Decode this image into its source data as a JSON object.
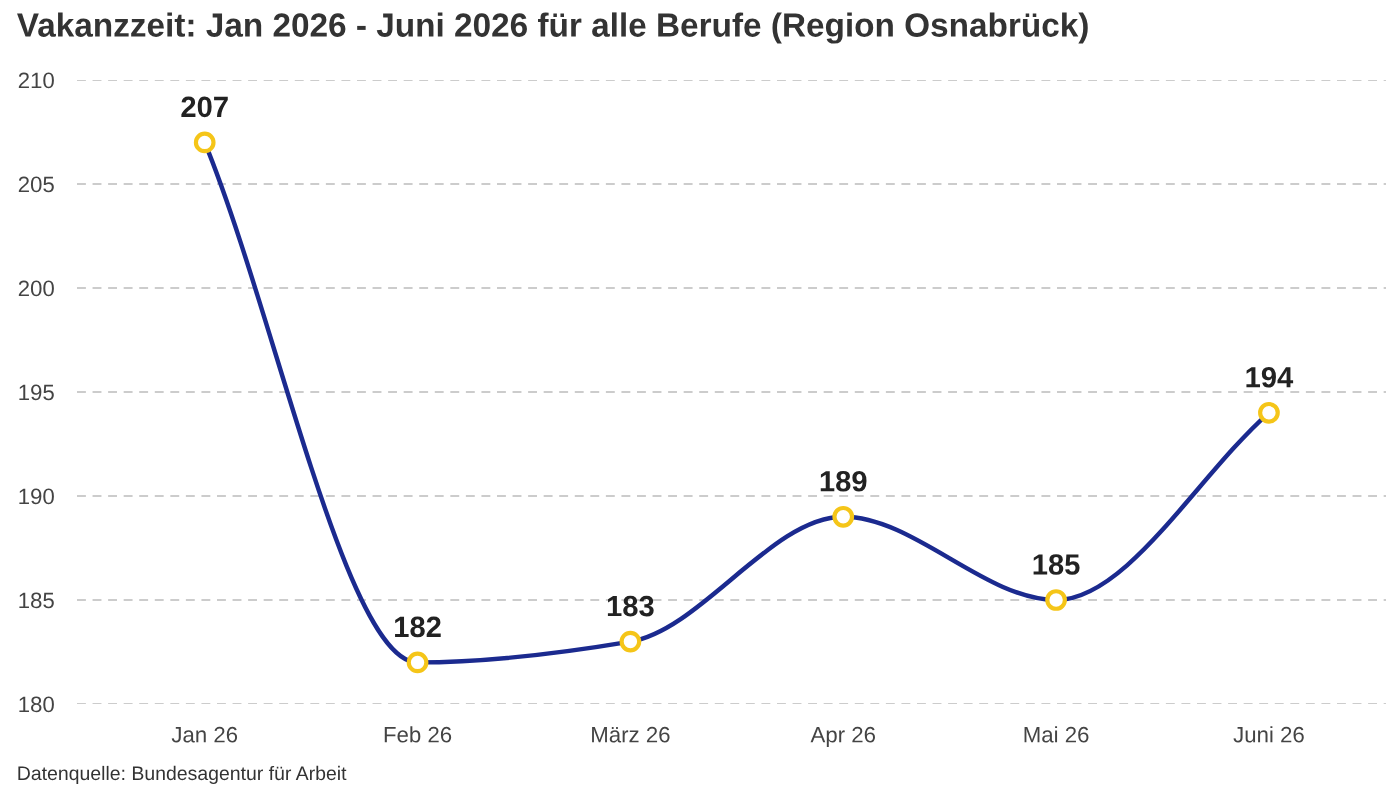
{
  "chart_data": {
    "type": "line",
    "title": "Vakanzzeit: Jan 2026 - Juni 2026 für alle Berufe (Region Osnabrück)",
    "categories": [
      "Jan 26",
      "Feb 26",
      "März 26",
      "Apr 26",
      "Mai 26",
      "Juni 26"
    ],
    "series": [
      {
        "color": "#1b2a8f",
        "values": [
          207,
          182,
          183,
          189,
          185,
          194
        ]
      }
    ],
    "ylim": [
      180,
      210
    ],
    "yticks": [
      180,
      185,
      190,
      195,
      200,
      205,
      210
    ],
    "grid": "y",
    "marker": "circle",
    "line_style": "solid",
    "data_labels": true,
    "legend": false,
    "annotations": [
      "Datenquelle: Bundesagentur für Arbeit"
    ]
  }
}
